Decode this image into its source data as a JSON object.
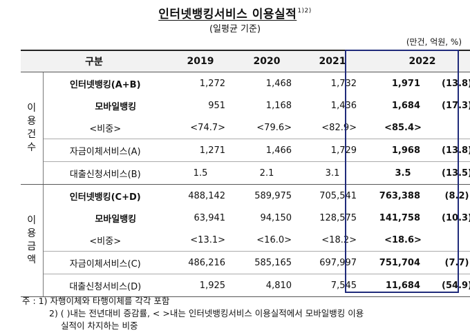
{
  "title": "인터넷뱅킹서비스 이용실적",
  "title_note": "1)2)",
  "subtitle": "(일평균 기준)",
  "unit": "(만건, 억원, %)",
  "header": {
    "category": "구분",
    "years": [
      "2019",
      "2020",
      "2021",
      "2022"
    ]
  },
  "sections": [
    {
      "label": [
        "이",
        "용",
        "건",
        "수"
      ],
      "rows": [
        {
          "label": "인터넷뱅킹(A+B)",
          "values": [
            "1,272",
            "1,468",
            "1,732"
          ],
          "v2022": "1,971",
          "pct": "(13.8)"
        },
        {
          "label": "모바일뱅킹",
          "values": [
            "951",
            "1,168",
            "1,436"
          ],
          "v2022": "1,684",
          "pct": "(17.3)"
        },
        {
          "label": "<비중>",
          "values": [
            "<74.7>",
            "<79.6>",
            "<82.9>"
          ],
          "v2022": "<85.4>",
          "pct": ""
        },
        {
          "label": "자금이체서비스(A)",
          "values": [
            "1,271",
            "1,466",
            "1,729"
          ],
          "v2022": "1,968",
          "pct": "(13.8)"
        },
        {
          "label": "대출신청서비스(B)",
          "values": [
            "1.5",
            "2.1",
            "3.1"
          ],
          "v2022": "3.5",
          "pct": "(13.5)"
        }
      ]
    },
    {
      "label": [
        "이",
        "용",
        "금",
        "액"
      ],
      "rows": [
        {
          "label": "인터넷뱅킹(C+D)",
          "values": [
            "488,142",
            "589,975",
            "705,541"
          ],
          "v2022": "763,388",
          "pct": "(8.2)"
        },
        {
          "label": "모바일뱅킹",
          "values": [
            "63,941",
            "94,150",
            "128,575"
          ],
          "v2022": "141,758",
          "pct": "(10.3)"
        },
        {
          "label": "<비중>",
          "values": [
            "<13.1>",
            "<16.0>",
            "<18.2>"
          ],
          "v2022": "<18.6>",
          "pct": ""
        },
        {
          "label": "자금이체서비스(C)",
          "values": [
            "486,216",
            "585,165",
            "697,997"
          ],
          "v2022": "751,704",
          "pct": "(7.7)"
        },
        {
          "label": "대출신청서비스(D)",
          "values": [
            "1,925",
            "4,810",
            "7,545"
          ],
          "v2022": "11,684",
          "pct": "(54.9)"
        }
      ]
    }
  ],
  "notes": [
    "주 : 1) 자행이체와 타행이체를 각각 포함",
    "2) ( )내는 전년대비 증감률, < >내는 인터넷뱅킹서비스 이용실적에서 모바일뱅킹 이용",
    "실적이 차지하는 비중"
  ]
}
